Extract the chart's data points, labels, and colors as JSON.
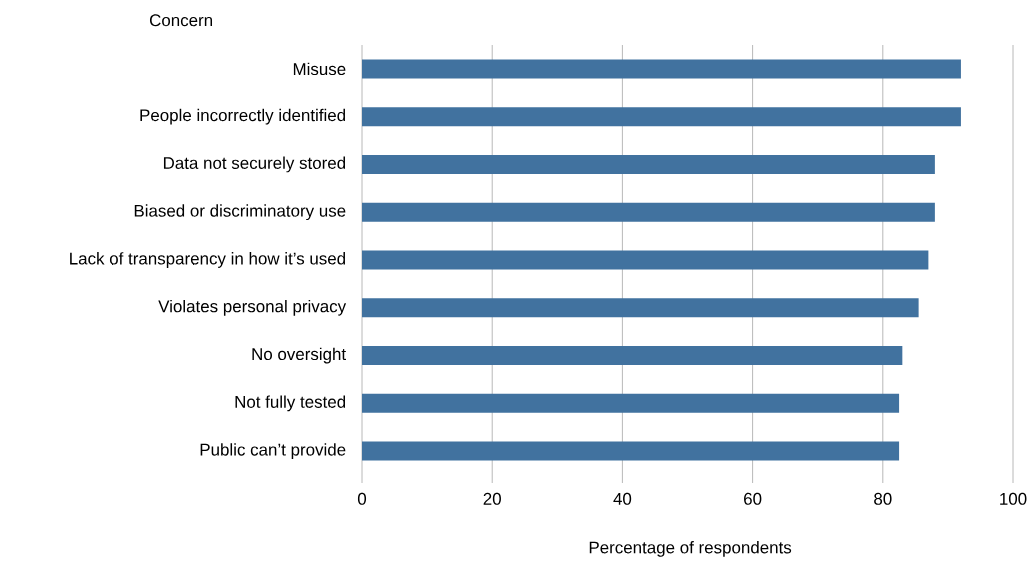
{
  "chart_data": {
    "type": "bar",
    "orientation": "horizontal",
    "ylabel": "Concern",
    "xlabel": "Percentage of respondents",
    "categories": [
      "Misuse",
      "People incorrectly identified",
      "Data not securely stored",
      "Biased or discriminatory use",
      "Lack of transparency in how it’s used",
      "Violates personal privacy",
      "No oversight",
      "Not fully tested",
      "Public can’t provide"
    ],
    "values": [
      92,
      92,
      88,
      88,
      87,
      85.5,
      83,
      82.5,
      82.5
    ],
    "color": "#41729f",
    "xlim": [
      0,
      100
    ],
    "xticks": [
      0,
      20,
      40,
      60,
      80,
      100
    ],
    "grid": "x"
  }
}
